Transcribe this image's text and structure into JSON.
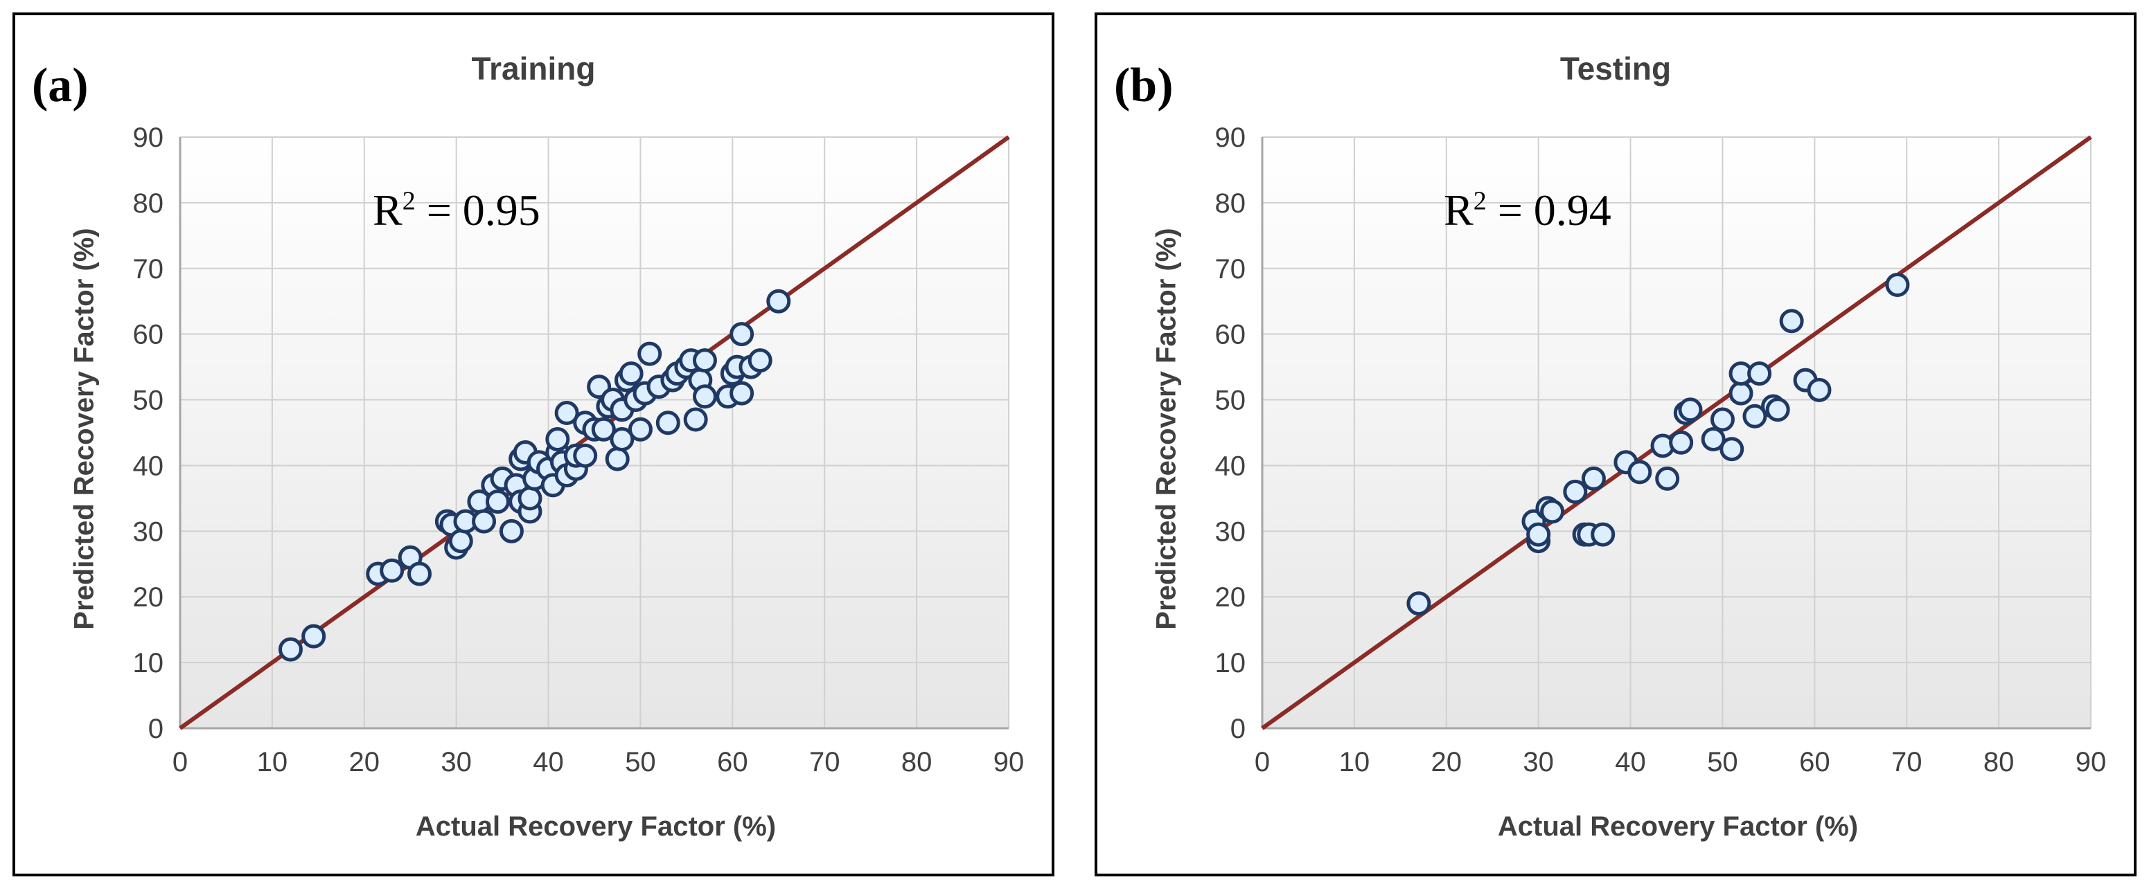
{
  "chart_data": [
    {
      "type": "scatter",
      "panel_label": "(a)",
      "title": "Training",
      "xlabel": "Actual Recovery Factor (%)",
      "ylabel": "Predicted Recovery Factor (%)",
      "xlim": [
        0,
        90
      ],
      "ylim": [
        0,
        90
      ],
      "xticks": [
        "0",
        "10",
        "20",
        "30",
        "40",
        "50",
        "60",
        "70",
        "80",
        "90"
      ],
      "yticks": [
        "0",
        "10",
        "20",
        "30",
        "40",
        "50",
        "60",
        "70",
        "80",
        "90"
      ],
      "r2_prefix": "R",
      "r2_sup": "2",
      "r2_value": " = 0.95",
      "reference_line": [
        [
          0,
          0
        ],
        [
          90,
          90
        ]
      ],
      "grid": true,
      "colors": {
        "line": "#8b2a26",
        "marker_fill": "#ddeeff",
        "marker_edge": "#1f3864",
        "grid": "#d0d0d0"
      },
      "points": [
        [
          12,
          12
        ],
        [
          14.5,
          14
        ],
        [
          21.5,
          23.5
        ],
        [
          23,
          24
        ],
        [
          25,
          26
        ],
        [
          26,
          23.5
        ],
        [
          29,
          31.5
        ],
        [
          29.5,
          31
        ],
        [
          30,
          27.5
        ],
        [
          30.5,
          28.5
        ],
        [
          31,
          31.5
        ],
        [
          32.5,
          34.5
        ],
        [
          33,
          31.5
        ],
        [
          34,
          37
        ],
        [
          34.5,
          34.5
        ],
        [
          35,
          38
        ],
        [
          36,
          30
        ],
        [
          36.5,
          37
        ],
        [
          37,
          34.5
        ],
        [
          37,
          41
        ],
        [
          37.5,
          42
        ],
        [
          38,
          33
        ],
        [
          38,
          35
        ],
        [
          38.5,
          38
        ],
        [
          39,
          40.5
        ],
        [
          40,
          39.5
        ],
        [
          40.5,
          37
        ],
        [
          41,
          42
        ],
        [
          41,
          44
        ],
        [
          41.5,
          40.5
        ],
        [
          42,
          38.5
        ],
        [
          42,
          48
        ],
        [
          43,
          39.5
        ],
        [
          43,
          41.5
        ],
        [
          44,
          41.5
        ],
        [
          44,
          46.5
        ],
        [
          45,
          45.5
        ],
        [
          45.5,
          52
        ],
        [
          46,
          45.5
        ],
        [
          46.5,
          49
        ],
        [
          47,
          50
        ],
        [
          47.5,
          41
        ],
        [
          48,
          44
        ],
        [
          48,
          48.5
        ],
        [
          48.5,
          53
        ],
        [
          49,
          54
        ],
        [
          49.5,
          50
        ],
        [
          50,
          45.5
        ],
        [
          50.5,
          51
        ],
        [
          51,
          57
        ],
        [
          52,
          52
        ],
        [
          53,
          46.5
        ],
        [
          53.5,
          53
        ],
        [
          54,
          54
        ],
        [
          55,
          55
        ],
        [
          55.5,
          56
        ],
        [
          56,
          47
        ],
        [
          56.5,
          53
        ],
        [
          57,
          56
        ],
        [
          57,
          50.5
        ],
        [
          59.5,
          50.5
        ],
        [
          60,
          54
        ],
        [
          60.5,
          55
        ],
        [
          61,
          51
        ],
        [
          61,
          60
        ],
        [
          62,
          55
        ],
        [
          63,
          56
        ],
        [
          65,
          65
        ]
      ]
    },
    {
      "type": "scatter",
      "panel_label": "(b)",
      "title": "Testing",
      "xlabel": "Actual Recovery Factor (%)",
      "ylabel": "Predicted Recovery Factor (%)",
      "xlim": [
        0,
        90
      ],
      "ylim": [
        0,
        90
      ],
      "xticks": [
        "0",
        "10",
        "20",
        "30",
        "40",
        "50",
        "60",
        "70",
        "80",
        "90"
      ],
      "yticks": [
        "0",
        "10",
        "20",
        "30",
        "40",
        "50",
        "60",
        "70",
        "80",
        "90"
      ],
      "r2_prefix": "R",
      "r2_sup": "2",
      "r2_value": " = 0.94",
      "reference_line": [
        [
          0,
          0
        ],
        [
          90,
          90
        ]
      ],
      "grid": true,
      "colors": {
        "line": "#8b2a26",
        "marker_fill": "#ddeeff",
        "marker_edge": "#1f3864",
        "grid": "#d0d0d0"
      },
      "points": [
        [
          17,
          19
        ],
        [
          29.5,
          31.5
        ],
        [
          30,
          28.5
        ],
        [
          30,
          29.5
        ],
        [
          31,
          33.5
        ],
        [
          31.5,
          33
        ],
        [
          34,
          36
        ],
        [
          35,
          29.5
        ],
        [
          35.5,
          29.5
        ],
        [
          36,
          38
        ],
        [
          37,
          29.5
        ],
        [
          39.5,
          40.5
        ],
        [
          41,
          39
        ],
        [
          43.5,
          43
        ],
        [
          44,
          38
        ],
        [
          45.5,
          43.5
        ],
        [
          46,
          48
        ],
        [
          46.5,
          48.5
        ],
        [
          49,
          44
        ],
        [
          50,
          47
        ],
        [
          51,
          42.5
        ],
        [
          52,
          51
        ],
        [
          52,
          54
        ],
        [
          53.5,
          47.5
        ],
        [
          54,
          54
        ],
        [
          55.5,
          49
        ],
        [
          56,
          48.5
        ],
        [
          57.5,
          62
        ],
        [
          59,
          53
        ],
        [
          60.5,
          51.5
        ],
        [
          69,
          67.5
        ]
      ]
    }
  ]
}
